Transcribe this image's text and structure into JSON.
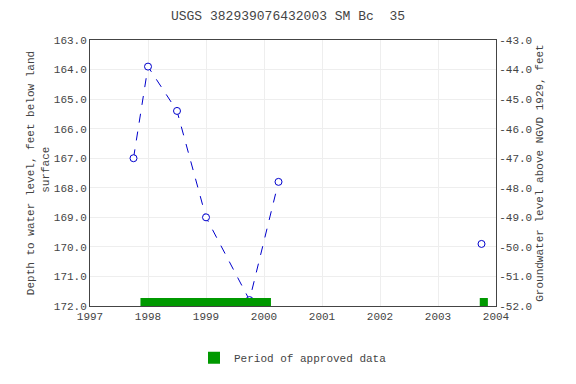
{
  "chart_data": {
    "type": "line",
    "title": "USGS 382939076432003 SM Bc  35",
    "ylabel": "Depth to water level, feet below land\n surface",
    "y2label": "Groundwater level above NGVD 1929, feet",
    "series": [
      {
        "x": [
          1997.75,
          1998.0,
          1998.5,
          1999.0,
          1999.75,
          2000.25
        ],
        "values": [
          167.0,
          163.9,
          165.4,
          169.0,
          171.8,
          167.8
        ],
        "color": "#0000cc",
        "line_style": "dashed",
        "marker": "circle"
      },
      {
        "x": [
          2003.75
        ],
        "values": [
          169.9
        ],
        "color": "#0000cc",
        "line_style": "none",
        "marker": "circle"
      }
    ],
    "approved": {
      "name": "Period of approved data",
      "color": "#009900",
      "spans": [
        [
          1997.87,
          2000.12
        ],
        [
          2003.72,
          2003.86
        ]
      ]
    },
    "xlim": [
      1997,
      2004
    ],
    "xticks": [
      1997,
      1998,
      1999,
      2000,
      2001,
      2002,
      2003,
      2004
    ],
    "ylim": [
      172.0,
      163.0
    ],
    "yticks": [
      {
        "value": 163.0,
        "label": "163.0"
      },
      {
        "value": 164.0,
        "label": "164.0"
      },
      {
        "value": 165.0,
        "label": "165.0"
      },
      {
        "value": 166.0,
        "label": "166.0"
      },
      {
        "value": 167.0,
        "label": "167.0"
      },
      {
        "value": 168.0,
        "label": "168.0"
      },
      {
        "value": 169.0,
        "label": "169.0"
      },
      {
        "value": 170.0,
        "label": "170.0"
      },
      {
        "value": 171.0,
        "label": "171.0"
      },
      {
        "value": 172.0,
        "label": "172.0"
      }
    ],
    "y2lim": [
      -52.0,
      -43.0
    ],
    "y2ticks": [
      {
        "value": -43.0,
        "label": "-43.0"
      },
      {
        "value": -44.0,
        "label": "-44.0"
      },
      {
        "value": -45.0,
        "label": "-45.0"
      },
      {
        "value": -46.0,
        "label": "-46.0"
      },
      {
        "value": -47.0,
        "label": "-47.0"
      },
      {
        "value": -48.0,
        "label": "-48.0"
      },
      {
        "value": -49.0,
        "label": "-49.0"
      },
      {
        "value": -50.0,
        "label": "-50.0"
      },
      {
        "value": -51.0,
        "label": "-51.0"
      },
      {
        "value": -52.0,
        "label": "-52.0"
      }
    ],
    "grid": true,
    "legend": "bottom"
  }
}
